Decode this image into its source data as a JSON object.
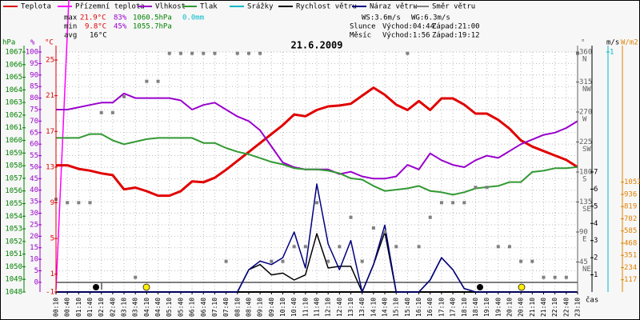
{
  "header": {
    "stats": [
      {
        "label": "max",
        "temp": "21.9°C",
        "hum": "83%",
        "press": "1060.5hPa",
        "rain": "0.0mm"
      },
      {
        "label": "min",
        "temp": "9.8°C",
        "hum": "45%",
        "press": "1055.7hPa"
      },
      {
        "label": "avg",
        "temp": "16°C"
      }
    ],
    "wind": {
      "ws": "WS:3.6m/s",
      "wg": "WG:6.3m/s"
    },
    "sun": {
      "label": "Slunce",
      "rise": "Východ:04:44",
      "set": "Západ:21:00"
    },
    "moon": {
      "label": "Měsíc",
      "rise": "Východ:1:56",
      "set": "Západ:19:12"
    }
  },
  "chart_data": {
    "type": "line",
    "title": "21.6.2009",
    "x_label": "čas",
    "categories": [
      "00:10",
      "00:40",
      "01:10",
      "01:40",
      "02:10",
      "02:40",
      "03:10",
      "03:40",
      "04:10",
      "04:40",
      "05:10",
      "05:40",
      "06:10",
      "06:40",
      "07:10",
      "07:40",
      "08:10",
      "08:40",
      "09:10",
      "09:40",
      "10:10",
      "10:40",
      "11:10",
      "11:40",
      "12:10",
      "12:40",
      "13:10",
      "13:40",
      "14:10",
      "14:40",
      "15:10",
      "15:40",
      "16:10",
      "16:40",
      "17:10",
      "17:40",
      "18:10",
      "18:40",
      "19:10",
      "19:40",
      "20:10",
      "20:40",
      "21:10",
      "21:40",
      "22:10",
      "22:40",
      "23:10"
    ],
    "axes": [
      {
        "label": "hPa",
        "color": "#008000",
        "lim": [
          1048,
          1067
        ],
        "ticks": [
          1067,
          1066,
          1065,
          1064,
          1063,
          1062,
          1061,
          1060,
          1059,
          1058,
          1057,
          1056,
          1055,
          1054,
          1053,
          1052,
          1051,
          1050,
          1049,
          1048
        ]
      },
      {
        "label": "%",
        "color": "#9900cc",
        "lim": [
          -4.2,
          100
        ],
        "ticks": [
          100,
          95,
          90,
          85,
          80,
          75,
          70,
          65,
          60,
          55,
          50,
          45,
          40,
          35,
          30,
          25,
          20,
          15,
          10,
          5,
          0
        ],
        "grid": true
      },
      {
        "label": "°C",
        "color": "#e00000",
        "lim": [
          -1,
          25.9
        ],
        "ticks": [
          25,
          21,
          17,
          13,
          9,
          5,
          1,
          -1
        ]
      },
      {
        "label": "°",
        "color": "#606060",
        "lim": [
          0,
          360
        ],
        "ticks": [
          360,
          315,
          270,
          225,
          180,
          135,
          90,
          45
        ],
        "tick_names": [
          "N",
          "NW",
          "W",
          "SW",
          "S",
          "SE",
          "E",
          "NE"
        ]
      },
      {
        "label": "m/s",
        "color": "#000000",
        "lim": [
          0,
          14
        ],
        "ticks": [
          7,
          6,
          5,
          4,
          3,
          2,
          1
        ]
      },
      {
        "color": "#00b8c8",
        "lim": [
          0,
          1
        ],
        "ticks": [
          1
        ]
      },
      {
        "label": "W/m2",
        "color": "#e08000",
        "lim": [
          0,
          2300
        ],
        "ticks": [
          1053,
          936,
          819,
          702,
          585,
          468,
          351,
          234,
          117
        ]
      }
    ],
    "series": [
      {
        "name": "Teplota",
        "color": "#e00000",
        "axis": 2,
        "width": 3,
        "values": [
          13.2,
          13.2,
          12.8,
          12.6,
          12.3,
          12.1,
          10.5,
          10.7,
          10.3,
          9.8,
          9.8,
          10.3,
          11.4,
          11.3,
          11.8,
          12.7,
          13.7,
          14.7,
          15.7,
          16.7,
          17.7,
          18.9,
          18.7,
          19.4,
          19.8,
          19.9,
          20.1,
          21.0,
          21.9,
          21.1,
          20.0,
          19.4,
          20.4,
          19.4,
          20.7,
          20.7,
          20.0,
          19.0,
          19.0,
          18.3,
          17.3,
          16.0,
          15.3,
          14.8,
          14.3,
          13.8,
          13.0
        ]
      },
      {
        "name": "Přízemní teplota",
        "color": "#ff00ff"
      },
      {
        "name": "Vlhkost",
        "color": "#9900cc",
        "axis": 1,
        "width": 2,
        "values": [
          75,
          75,
          76,
          77,
          78,
          78,
          82,
          80,
          80,
          80,
          80,
          79,
          75,
          77,
          78,
          75,
          72,
          70,
          66,
          59,
          52,
          50,
          49,
          49,
          49,
          47,
          48,
          46,
          45,
          45,
          46,
          51,
          49,
          56,
          53,
          51,
          50,
          53,
          55,
          54,
          57,
          60,
          62,
          64,
          65,
          67,
          70
        ]
      },
      {
        "name": "Tlak",
        "color": "#339933",
        "axis": 0,
        "width": 2,
        "values": [
          1060.2,
          1060.2,
          1060.2,
          1060.5,
          1060.5,
          1060.0,
          1059.7,
          1059.9,
          1060.1,
          1060.2,
          1060.2,
          1060.2,
          1060.2,
          1059.8,
          1059.8,
          1059.4,
          1059.1,
          1058.9,
          1058.6,
          1058.3,
          1058.1,
          1057.8,
          1057.7,
          1057.7,
          1057.6,
          1057.4,
          1057.0,
          1056.9,
          1056.4,
          1056.0,
          1056.1,
          1056.2,
          1056.4,
          1056.0,
          1055.9,
          1055.7,
          1055.9,
          1056.2,
          1056.3,
          1056.4,
          1056.7,
          1056.7,
          1057.5,
          1057.6,
          1057.8,
          1057.8,
          1057.9
        ]
      },
      {
        "name": "Srážky",
        "color": "#00b8c8"
      },
      {
        "name": "Rychlost větru",
        "color": "#000000",
        "axis": 4,
        "width": 1.5,
        "values": [
          0,
          0,
          0,
          0,
          0,
          0,
          0,
          0,
          0,
          0,
          0,
          0,
          0,
          0,
          0,
          0,
          0,
          1.3,
          1.6,
          1.0,
          1.1,
          0.7,
          1.0,
          3.4,
          1.4,
          1.5,
          1.5,
          0,
          1.6,
          3.5,
          0,
          0,
          0,
          0.7,
          2.0,
          1.3,
          0.2,
          0,
          0,
          0,
          0,
          0,
          0,
          0,
          0,
          0,
          0
        ]
      },
      {
        "name": "Náraz větru",
        "color": "#000080",
        "axis": 4,
        "width": 1.5,
        "values": [
          0,
          0,
          0,
          0,
          0,
          0,
          0,
          0,
          0,
          0,
          0,
          0,
          0,
          0,
          0,
          0,
          0,
          1.3,
          1.8,
          1.6,
          2.0,
          3.5,
          1.4,
          6.3,
          2.8,
          1.3,
          3.0,
          0,
          1.6,
          3.9,
          0,
          0,
          0,
          0.7,
          2.0,
          1.3,
          0.2,
          0,
          0,
          0,
          0,
          0,
          0,
          0,
          0,
          0,
          0
        ]
      },
      {
        "name": "Směr větru",
        "color": "#808080",
        "axis": 3,
        "marker": "square",
        "values": [
          139,
          134,
          134,
          134,
          269,
          269,
          293,
          22,
          316,
          316,
          358,
          358,
          358,
          358,
          358,
          46,
          358,
          358,
          358,
          46,
          46,
          68,
          68,
          134,
          46,
          68,
          112,
          46,
          96,
          90,
          68,
          358,
          68,
          112,
          134,
          134,
          134,
          157,
          157,
          68,
          68,
          46,
          46,
          22,
          22,
          22,
          358
        ]
      }
    ]
  }
}
